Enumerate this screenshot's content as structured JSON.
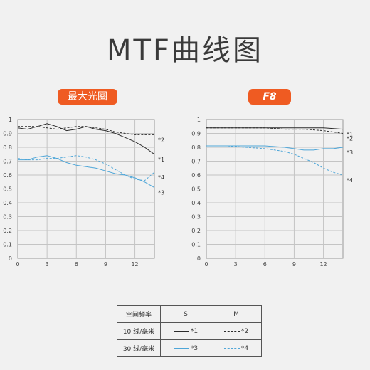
{
  "title": "MTF曲线图",
  "chart_data": [
    {
      "type": "line",
      "title": "最大光圈",
      "title_color": "#ef5b22",
      "xlim": [
        0,
        14
      ],
      "ylim": [
        0,
        1
      ],
      "xticks": [
        "0",
        "3",
        "6",
        "9",
        "12"
      ],
      "yticks": [
        "0",
        "0.1",
        "0.2",
        "0.3",
        "0.4",
        "0.5",
        "0.6",
        "0.7",
        "0.8",
        "0.9",
        "1"
      ],
      "grid": true,
      "series": [
        {
          "name": "*1",
          "style": "solid",
          "color": "#2b2b2b",
          "x": [
            0,
            1,
            2,
            3,
            4,
            5,
            6,
            7,
            8,
            9,
            10,
            11,
            12,
            13,
            14
          ],
          "y": [
            0.94,
            0.93,
            0.95,
            0.97,
            0.95,
            0.92,
            0.93,
            0.95,
            0.93,
            0.92,
            0.9,
            0.87,
            0.84,
            0.8,
            0.75
          ]
        },
        {
          "name": "*2",
          "style": "dashed",
          "color": "#2b2b2b",
          "x": [
            0,
            1,
            2,
            3,
            4,
            5,
            6,
            7,
            8,
            9,
            10,
            11,
            12,
            13,
            14
          ],
          "y": [
            0.95,
            0.95,
            0.95,
            0.94,
            0.93,
            0.94,
            0.95,
            0.95,
            0.94,
            0.93,
            0.91,
            0.9,
            0.89,
            0.89,
            0.89
          ]
        },
        {
          "name": "*3",
          "style": "solid",
          "color": "#4ea6d8",
          "x": [
            0,
            1,
            2,
            3,
            4,
            5,
            6,
            7,
            8,
            9,
            10,
            11,
            12,
            13,
            14
          ],
          "y": [
            0.71,
            0.71,
            0.73,
            0.74,
            0.72,
            0.69,
            0.67,
            0.66,
            0.65,
            0.63,
            0.61,
            0.6,
            0.58,
            0.55,
            0.51
          ]
        },
        {
          "name": "*4",
          "style": "dashed",
          "color": "#4ea6d8",
          "x": [
            0,
            1,
            2,
            3,
            4,
            5,
            6,
            7,
            8,
            9,
            10,
            11,
            12,
            13,
            14
          ],
          "y": [
            0.72,
            0.71,
            0.71,
            0.72,
            0.72,
            0.73,
            0.74,
            0.73,
            0.71,
            0.68,
            0.64,
            0.6,
            0.57,
            0.56,
            0.62
          ]
        }
      ]
    },
    {
      "type": "line",
      "title": "F8",
      "title_color": "#ef5b22",
      "xlim": [
        0,
        14
      ],
      "ylim": [
        0,
        1
      ],
      "xticks": [
        "0",
        "3",
        "6",
        "9",
        "12"
      ],
      "yticks": [
        "0",
        "0.1",
        "0.2",
        "0.3",
        "0.4",
        "0.5",
        "0.6",
        "0.7",
        "0.8",
        "0.9",
        "1"
      ],
      "grid": true,
      "series": [
        {
          "name": "*1",
          "style": "solid",
          "color": "#2b2b2b",
          "x": [
            0,
            2,
            4,
            6,
            8,
            10,
            12,
            14
          ],
          "y": [
            0.94,
            0.94,
            0.94,
            0.94,
            0.94,
            0.94,
            0.94,
            0.93
          ]
        },
        {
          "name": "*2",
          "style": "dashed",
          "color": "#2b2b2b",
          "x": [
            0,
            2,
            4,
            6,
            8,
            10,
            12,
            14
          ],
          "y": [
            0.94,
            0.94,
            0.94,
            0.94,
            0.93,
            0.93,
            0.92,
            0.9
          ]
        },
        {
          "name": "*3",
          "style": "solid",
          "color": "#4ea6d8",
          "x": [
            0,
            2,
            4,
            6,
            8,
            9,
            10,
            11,
            12,
            13,
            14
          ],
          "y": [
            0.81,
            0.81,
            0.81,
            0.81,
            0.8,
            0.79,
            0.78,
            0.78,
            0.79,
            0.79,
            0.8
          ]
        },
        {
          "name": "*4",
          "style": "dashed",
          "color": "#4ea6d8",
          "x": [
            0,
            2,
            4,
            6,
            8,
            9,
            10,
            11,
            12,
            13,
            14
          ],
          "y": [
            0.81,
            0.81,
            0.8,
            0.79,
            0.77,
            0.75,
            0.72,
            0.69,
            0.65,
            0.62,
            0.6
          ]
        }
      ]
    }
  ],
  "legend_table": {
    "header": {
      "col0": "空间频率",
      "col1": "S",
      "col2": "M"
    },
    "rows": [
      {
        "label": "10 线/毫米",
        "s": "*1",
        "m": "*2",
        "color": "#2b2b2b"
      },
      {
        "label": "30 线/毫米",
        "s": "*3",
        "m": "*4",
        "color": "#4ea6d8"
      }
    ]
  }
}
